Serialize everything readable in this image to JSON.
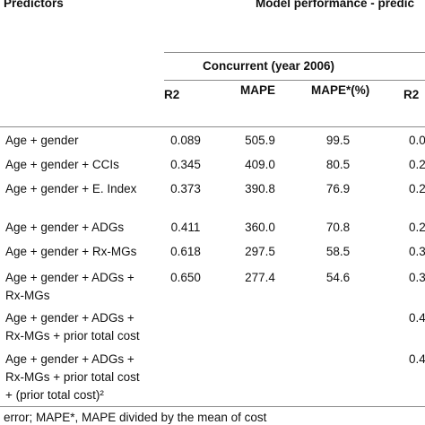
{
  "header": {
    "predictors_label": "Predictors",
    "performance_label": "Model performance - predic",
    "concurrent_label": "Concurrent (year 2006)",
    "columns": [
      "R2",
      "MAPE",
      "MAPE*(%)",
      "R2"
    ]
  },
  "rows": [
    {
      "label_lines": [
        "Age + gender"
      ],
      "r2": "0.089",
      "mape": "505.9",
      "mape_pct": "99.5",
      "r2_next": "0.0"
    },
    {
      "label_lines": [
        "Age + gender + CCIs"
      ],
      "r2": "0.345",
      "mape": "409.0",
      "mape_pct": "80.5",
      "r2_next": "0.2"
    },
    {
      "label_lines": [
        "Age + gender + E. Index"
      ],
      "r2": "0.373",
      "mape": "390.8",
      "mape_pct": "76.9",
      "r2_next": "0.2"
    },
    {
      "label_lines": [
        "Age + gender + ADGs"
      ],
      "r2": "0.411",
      "mape": "360.0",
      "mape_pct": "70.8",
      "r2_next": "0.2"
    },
    {
      "label_lines": [
        "Age + gender + Rx-MGs"
      ],
      "r2": "0.618",
      "mape": "297.5",
      "mape_pct": "58.5",
      "r2_next": "0.3"
    },
    {
      "label_lines": [
        "Age + gender + ADGs +",
        "Rx-MGs"
      ],
      "r2": "0.650",
      "mape": "277.4",
      "mape_pct": "54.6",
      "r2_next": "0.3"
    },
    {
      "label_lines": [
        "Age + gender + ADGs +",
        "Rx-MGs + prior total cost"
      ],
      "r2": "",
      "mape": "",
      "mape_pct": "",
      "r2_next": "0.4"
    },
    {
      "label_lines": [
        "Age + gender + ADGs +",
        "Rx-MGs + prior total cost",
        "+ (prior total cost)²"
      ],
      "r2": "",
      "mape": "",
      "mape_pct": "",
      "r2_next": "0.4"
    }
  ],
  "footnote": "error; MAPE*, MAPE divided by the mean of cost"
}
